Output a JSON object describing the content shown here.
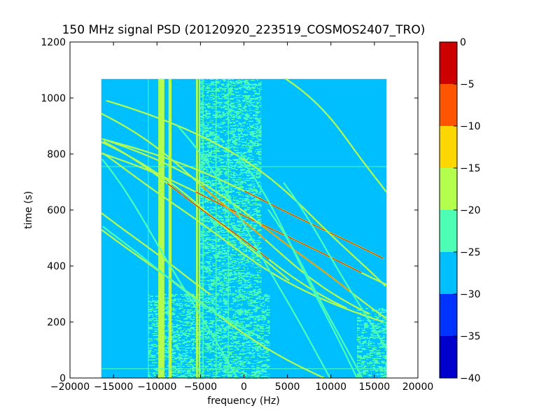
{
  "chart_data": {
    "type": "heatmap",
    "title": "150 MHz signal PSD (20120920_223519_COSMOS2407_TRO)",
    "xlabel": "frequency (Hz)",
    "ylabel": "time (s)",
    "xlim": [
      -20000,
      20000
    ],
    "ylim": [
      0,
      1200
    ],
    "x_ticks": [
      -20000,
      -15000,
      -10000,
      -5000,
      0,
      5000,
      10000,
      15000,
      20000
    ],
    "x_tick_labels": [
      "−20000",
      "−15000",
      "−10000",
      "−5000",
      "0",
      "5000",
      "10000",
      "15000",
      "20000"
    ],
    "y_ticks": [
      0,
      200,
      400,
      600,
      800,
      1000,
      1200
    ],
    "y_tick_labels": [
      "0",
      "200",
      "400",
      "600",
      "800",
      "1000",
      "1200"
    ],
    "data_extent": {
      "x": [
        -16400,
        16400
      ],
      "y": [
        0,
        1068
      ]
    },
    "background_level": -27.5,
    "colorbar": {
      "levels": [
        -40,
        -35,
        -30,
        -25,
        -20,
        -15,
        -10,
        -5,
        0
      ],
      "tick_labels": [
        "−40",
        "−35",
        "−30",
        "−25",
        "−20",
        "−15",
        "−10",
        "−5",
        "0"
      ],
      "colors": [
        "#0000cd",
        "#0033ff",
        "#00bfff",
        "#4dffb4",
        "#b4ff4d",
        "#ffd700",
        "#ff5500",
        "#cd0000"
      ]
    },
    "noise_regions": [
      {
        "x0": -11000,
        "x1": 3000,
        "y0": 0,
        "y1": 300,
        "level": -22.5
      },
      {
        "x0": -5000,
        "x1": 2000,
        "y0": 300,
        "y1": 1068,
        "level": -23.5
      },
      {
        "x0": 13000,
        "x1": 16400,
        "y0": 0,
        "y1": 250,
        "level": -23.5
      }
    ],
    "vertical_lines": [
      {
        "x": -9500,
        "width": 700,
        "level": -17.5
      },
      {
        "x": -8500,
        "width": 350,
        "level": -17.5
      },
      {
        "x": -5400,
        "width": 220,
        "level": -17.5
      },
      {
        "x": -5100,
        "width": 150,
        "level": -17.5
      },
      {
        "x": -4700,
        "width": 120,
        "level": -22.5
      },
      {
        "x": -3200,
        "width": 100,
        "level": -22.5
      },
      {
        "x": -1800,
        "width": 100,
        "level": -22.5
      },
      {
        "x": -11000,
        "width": 80,
        "level": -22.5
      }
    ],
    "horizontal_lines": [
      {
        "y": 755,
        "level": -22.5
      },
      {
        "y": 33,
        "level": -22.5
      }
    ],
    "traces": [
      {
        "x0": 9800,
        "y0": 520,
        "amp": 5500,
        "scale": 80,
        "ymin": 265,
        "ymax": 1068,
        "level": -17.5,
        "peak": -2.5,
        "core": 150
      },
      {
        "x0": 4000,
        "y0": 520,
        "amp": 5500,
        "scale": 80,
        "ymin": 250,
        "ymax": 1068,
        "level": -17.5,
        "peak": -2.5,
        "core": 150
      },
      {
        "x0": 7000,
        "y0": 430,
        "amp": 4000,
        "scale": 90,
        "ymin": 215,
        "ymax": 1068,
        "level": -17.5,
        "peak": -7.5,
        "core": 120
      },
      {
        "x0": 12800,
        "y0": 430,
        "amp": 3500,
        "scale": 100,
        "ymin": 150,
        "ymax": 1068,
        "level": -17.5
      },
      {
        "x0": 1600,
        "y0": 440,
        "amp": 4000,
        "scale": 100,
        "ymin": 350,
        "ymax": 1068,
        "level": -17.5
      },
      {
        "x0": -3000,
        "y0": 560,
        "amp": 3800,
        "scale": 85,
        "ymin": 250,
        "ymax": 1068,
        "level": -17.5,
        "peak": -2.5,
        "core": 140
      },
      {
        "x0": -1200,
        "y0": 590,
        "amp": 3500,
        "scale": 90,
        "ymin": 230,
        "ymax": 1068,
        "level": -17.5,
        "peak": -7.5,
        "core": 100
      },
      {
        "x0": -12500,
        "y0": 500,
        "amp": 4000,
        "scale": 90,
        "ymin": 300,
        "ymax": 1068,
        "level": -17.5
      },
      {
        "x0": -11500,
        "y0": 420,
        "amp": 5000,
        "scale": 110,
        "ymin": 0,
        "ymax": 1068,
        "level": -17.5
      },
      {
        "x0": -8000,
        "y0": 620,
        "amp": 4200,
        "scale": 90,
        "ymin": 100,
        "ymax": 1068,
        "level": -17.5
      },
      {
        "x0": -14500,
        "y0": 500,
        "amp": 3800,
        "scale": 90,
        "ymin": 150,
        "ymax": 1068,
        "level": -22.5
      },
      {
        "x0": 15000,
        "y0": 720,
        "amp": 2000,
        "scale": 80,
        "ymin": 450,
        "ymax": 1068,
        "level": -17.5
      },
      {
        "x0": 9000,
        "y0": 250,
        "amp": 2500,
        "scale": 150,
        "ymin": 0,
        "ymax": 800,
        "level": -22.5
      },
      {
        "x0": 13500,
        "y0": 250,
        "amp": 3000,
        "scale": 150,
        "ymin": 0,
        "ymax": 700,
        "level": -22.5
      },
      {
        "x0": 4500,
        "y0": 300,
        "amp": 3000,
        "scale": 160,
        "ymin": 0,
        "ymax": 900,
        "level": -22.5
      },
      {
        "x0": -6500,
        "y0": 300,
        "amp": 3000,
        "scale": 150,
        "ymin": 0,
        "ymax": 900,
        "level": -22.5
      },
      {
        "x0": 11000,
        "y0": 150,
        "amp": 2500,
        "scale": 140,
        "ymin": 0,
        "ymax": 600,
        "level": -22.5
      }
    ]
  }
}
